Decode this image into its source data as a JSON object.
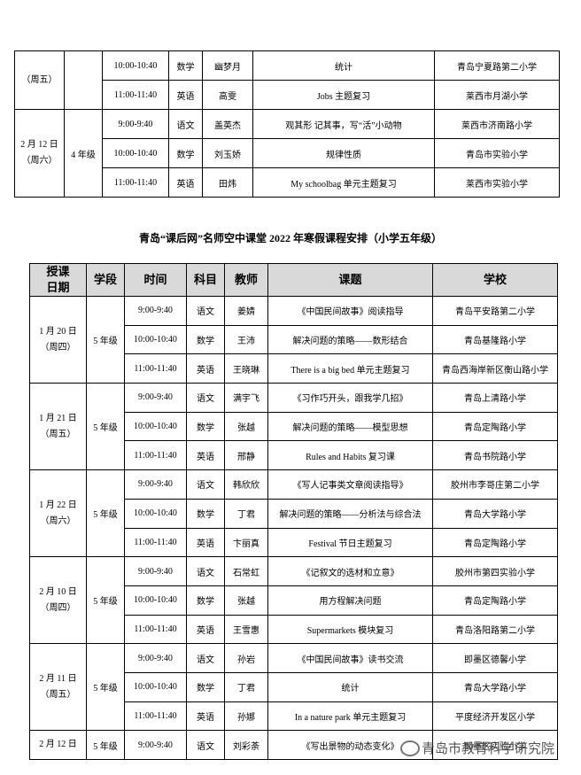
{
  "top_table": {
    "groups": [
      {
        "date": [
          "（周五）"
        ],
        "rows": [
          [
            "10:00-10:40",
            "数学",
            "幽梦月",
            "统计",
            "青岛宁夏路第二小学"
          ],
          [
            "11:00-11:40",
            "英语",
            "高雯",
            "Jobs 主题复习",
            "莱西市月湖小学"
          ]
        ]
      },
      {
        "date": [
          "2 月 12 日",
          "（周六）"
        ],
        "grade": "4 年级",
        "rows": [
          [
            "9:00-9:40",
            "语文",
            "盖英杰",
            "观其形  记其事，写“活”小动物",
            "莱西市济南路小学"
          ],
          [
            "10:00-10:40",
            "数学",
            "刘玉娇",
            "规律性质",
            "青岛市实验小学"
          ],
          [
            "11:00-11:40",
            "英语",
            "田炜",
            "My schoolbag 单元主题复习",
            "莱西市实验小学"
          ]
        ]
      }
    ]
  },
  "title": "青岛“课后网”名师空中课堂 2022 年寒假课程安排（小学五年级）",
  "table": {
    "header": [
      [
        "授课",
        "日期"
      ],
      "学段",
      "时间",
      "科目",
      "教师",
      "课题",
      "学校"
    ],
    "groups": [
      {
        "date": [
          "1 月 20 日",
          "（周四）"
        ],
        "grade": "5 年级",
        "rows": [
          [
            "9:00-9:40",
            "语文",
            "姜婧",
            "《中国民间故事》阅读指导",
            "青岛平安路第二小学"
          ],
          [
            "10:00-10:40",
            "数学",
            "王沛",
            "解决问题的策略——数形结合",
            "青岛基隆路小学"
          ],
          [
            "11:00-11:40",
            "英语",
            "王晓琳",
            "There is a big bed  单元主题复习",
            "青岛西海岸新区衡山路小学"
          ]
        ]
      },
      {
        "date": [
          "1 月 21 日",
          "（周五）"
        ],
        "grade": "5 年级",
        "rows": [
          [
            "9:00-9:40",
            "语文",
            "满宇飞",
            "《习作巧开头，跟我学几招》",
            "青岛上清路小学"
          ],
          [
            "10:00-10:40",
            "数学",
            "张越",
            "解决问题的策略——模型思想",
            "青岛定陶路小学"
          ],
          [
            "11:00-11:40",
            "英语",
            "邢静",
            "Rules and Habits  复习课",
            "青岛书院路小学"
          ]
        ]
      },
      {
        "date": [
          "1 月 22 日",
          "（周六）"
        ],
        "grade": "5 年级",
        "rows": [
          [
            "9:00-9:40",
            "语文",
            "韩欣欣",
            "《写人记事类文章阅读指导》",
            "胶州市李哥庄第二小学"
          ],
          [
            "10:00-10:40",
            "数学",
            "丁君",
            "解决问题的策略——分析法与综合法",
            "青岛大学路小学"
          ],
          [
            "11:00-11:40",
            "英语",
            "卞丽真",
            "Festival  节日主题复习",
            "青岛定陶路小学"
          ]
        ]
      },
      {
        "date": [
          "2 月 10 日",
          "（周四）"
        ],
        "grade": "5 年级",
        "rows": [
          [
            "9:00-9:40",
            "语文",
            "石常虹",
            "《记叙文的选材和立意》",
            "胶州市第四实验小学"
          ],
          [
            "10:00-10:40",
            "数学",
            "张越",
            "用方程解决问题",
            "青岛定陶路小学"
          ],
          [
            "11:00-11:40",
            "英语",
            "王雪惠",
            "Supermarkets  模块复习",
            "青岛洛阳路第二小学"
          ]
        ]
      },
      {
        "date": [
          "2 月 11 日",
          "（周五）"
        ],
        "grade": "5 年级",
        "rows": [
          [
            "9:00-9:40",
            "语文",
            "孙岩",
            "《中国民间故事》读书交流",
            "即墨区德馨小学"
          ],
          [
            "10:00-10:40",
            "数学",
            "丁君",
            "统计",
            "青岛大学路小学"
          ],
          [
            "11:00-11:40",
            "英语",
            "孙娜",
            "In a nature park  单元主题复习",
            "平度经济开发区小学"
          ]
        ]
      },
      {
        "date": [
          "2 月 12 日"
        ],
        "grade": "5 年级",
        "rows": [
          [
            "9:00-9:40",
            "语文",
            "刘彩荼",
            "《写出景物的动态变化》",
            "即墨区实验小学"
          ]
        ]
      }
    ]
  },
  "watermark": "青岛市教育科学研究院"
}
